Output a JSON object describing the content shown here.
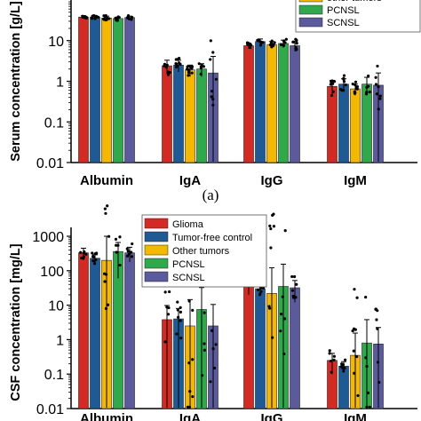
{
  "colors": {
    "Glioma": "#d32b24",
    "Tumor-free control": "#1f5a94",
    "Other tumors": "#f5b800",
    "PCNSL": "#31a84c",
    "SCNSL": "#5a5a9c",
    "axis": "#000000",
    "points": "#000000"
  },
  "panel_label_a": "(a)",
  "chart_data": [
    {
      "type": "bar",
      "ylabel": "Serum concentration [g/L]",
      "yscale": "log",
      "ylim": [
        0.01,
        100
      ],
      "yticks": [
        "0.01",
        "0.1",
        "1",
        "10"
      ],
      "categories": [
        "Albumin",
        "IgA",
        "IgG",
        "IgM"
      ],
      "legend_visible": [
        "Other tumors",
        "PCNSL",
        "SCNSL"
      ],
      "legend_text_visible": [
        "other tumors",
        "PCNSL",
        "SCNSL"
      ],
      "legend_position": "top-right, partially cropped",
      "series": [
        {
          "name": "Glioma",
          "values": [
            38,
            2.4,
            7.5,
            0.75
          ],
          "err": [
            3,
            0.9,
            1.2,
            0.3
          ]
        },
        {
          "name": "Tumor-free control",
          "values": [
            38,
            2.5,
            9.5,
            0.85
          ],
          "err": [
            3,
            0.8,
            1.5,
            0.3
          ]
        },
        {
          "name": "Other tumors",
          "values": [
            36,
            1.9,
            8,
            0.65
          ],
          "err": [
            4,
            0.6,
            1.5,
            0.2
          ]
        },
        {
          "name": "PCNSL",
          "values": [
            35,
            2.0,
            8.5,
            0.85
          ],
          "err": [
            3,
            0.7,
            1.8,
            0.4
          ]
        },
        {
          "name": "SCNSL",
          "values": [
            37,
            1.6,
            7.5,
            0.8
          ],
          "err": [
            3,
            2.5,
            2.0,
            0.8
          ]
        }
      ]
    },
    {
      "type": "bar",
      "ylabel": "CSF concentration [mg/L]",
      "yscale": "log",
      "ylim": [
        0.01,
        1000
      ],
      "yticks": [
        "0.01",
        "0.1",
        "1",
        "10",
        "100",
        "1000"
      ],
      "categories": [
        "Albumin",
        "IgA",
        "IgG",
        "IgM"
      ],
      "legend": [
        "Glioma",
        "Tumor-free control",
        "Other tumors",
        "PCNSL",
        "SCNSL"
      ],
      "legend_position": "top-center",
      "series": [
        {
          "name": "Glioma",
          "values": [
            330,
            3.8,
            35,
            0.25
          ],
          "err": [
            120,
            6,
            15,
            0.15
          ]
        },
        {
          "name": "Tumor-free control",
          "values": [
            230,
            4.0,
            30,
            0.17
          ],
          "err": [
            60,
            4,
            10,
            0.06
          ]
        },
        {
          "name": "Other tumors",
          "values": [
            200,
            2.5,
            22,
            0.35
          ],
          "err": [
            800,
            12,
            100,
            1.2
          ]
        },
        {
          "name": "PCNSL",
          "values": [
            360,
            7.5,
            35,
            0.8
          ],
          "err": [
            300,
            25,
            120,
            3
          ]
        },
        {
          "name": "SCNSL",
          "values": [
            330,
            2.5,
            32,
            0.75
          ],
          "err": [
            150,
            8,
            20,
            1.5
          ]
        }
      ]
    }
  ]
}
